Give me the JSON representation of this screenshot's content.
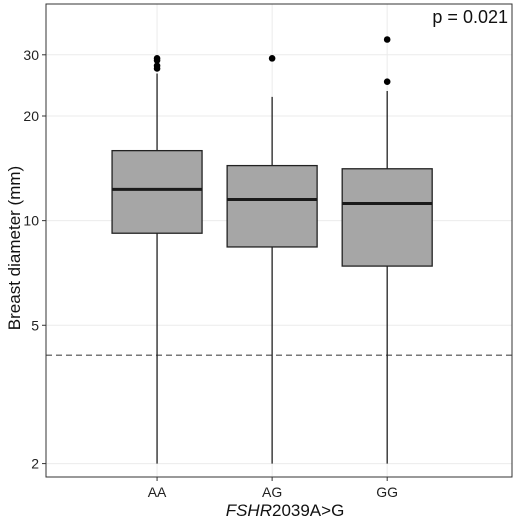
{
  "chart_data": {
    "type": "box",
    "xlabel_italic": "FSHR",
    "xlabel_rest": "2039A>G",
    "ylabel": "Breast diameter (mm)",
    "annotation": "p = 0.021",
    "y_scale": "log",
    "ylim": [
      1.83,
      42
    ],
    "y_ticks": [
      {
        "value": 2,
        "label": "2"
      },
      {
        "value": 5,
        "label": "5"
      },
      {
        "value": 10,
        "label": "10"
      },
      {
        "value": 20,
        "label": "20"
      },
      {
        "value": 30,
        "label": "30"
      }
    ],
    "grid": true,
    "reference_line": {
      "value": 4.1,
      "style": "dashed"
    },
    "categories": [
      "AA",
      "AG",
      "GG"
    ],
    "boxes": [
      {
        "category": "AA",
        "whisker_low": 2.0,
        "q1": 9.2,
        "median": 12.3,
        "q3": 15.9,
        "whisker_high": 26.5,
        "outliers": [
          27.4,
          27.9,
          28.9,
          29.3
        ]
      },
      {
        "category": "AG",
        "whisker_low": 2.0,
        "q1": 8.4,
        "median": 11.5,
        "q3": 14.4,
        "whisker_high": 22.7,
        "outliers": [
          29.3
        ]
      },
      {
        "category": "GG",
        "whisker_low": 2.0,
        "q1": 7.4,
        "median": 11.2,
        "q3": 14.1,
        "whisker_high": 23.6,
        "outliers": [
          25.1,
          33.2
        ]
      }
    ],
    "colors": {
      "box_fill": "#a6a6a6",
      "box_stroke": "#222222",
      "median": "#1a1a1a",
      "grid": "#ebebeb",
      "ref_line": "#777777",
      "outlier": "#000000"
    }
  }
}
